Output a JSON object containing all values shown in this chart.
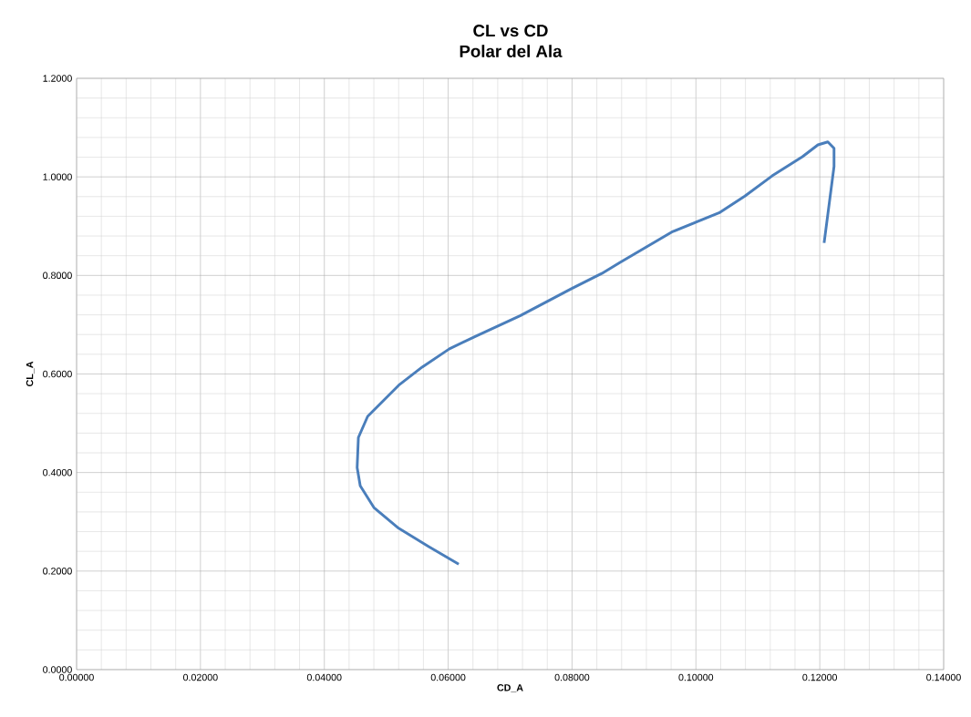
{
  "chart_data": {
    "type": "line",
    "title": "CL vs CD",
    "subtitle": "Polar del Ala",
    "xlabel": "CD_A",
    "ylabel": "CL_A",
    "xlim": [
      0,
      0.14
    ],
    "ylim": [
      0,
      1.2
    ],
    "xticks": [
      {
        "value": 0,
        "label": "0.00000"
      },
      {
        "value": 0.02,
        "label": "0.02000"
      },
      {
        "value": 0.04,
        "label": "0.04000"
      },
      {
        "value": 0.06,
        "label": "0.06000"
      },
      {
        "value": 0.08,
        "label": "0.08000"
      },
      {
        "value": 0.1,
        "label": "0.10000"
      },
      {
        "value": 0.12,
        "label": "0.12000"
      },
      {
        "value": 0.14,
        "label": "0.14000"
      }
    ],
    "yticks": [
      {
        "value": 0,
        "label": "0.0000"
      },
      {
        "value": 0.2,
        "label": "0.2000"
      },
      {
        "value": 0.4,
        "label": "0.4000"
      },
      {
        "value": 0.6,
        "label": "0.6000"
      },
      {
        "value": 0.8,
        "label": "0.8000"
      },
      {
        "value": 1.0,
        "label": "1.0000"
      },
      {
        "value": 1.2,
        "label": "1.2000"
      }
    ],
    "grid": true,
    "marker": "none",
    "line_style": "solid",
    "series": [
      {
        "color": "#4a7ebb",
        "x": [
          0.0617,
          0.0568,
          0.052,
          0.048,
          0.0458,
          0.0453,
          0.0455,
          0.047,
          0.052,
          0.0558,
          0.0602,
          0.0642,
          0.0716,
          0.0799,
          0.0848,
          0.0877,
          0.0961,
          0.1039,
          0.1079,
          0.1123,
          0.1172,
          0.1197,
          0.1213,
          0.1223,
          0.1223,
          0.1207
        ],
        "values": [
          0.214,
          0.25,
          0.287,
          0.329,
          0.373,
          0.41,
          0.471,
          0.514,
          0.577,
          0.614,
          0.651,
          0.675,
          0.718,
          0.773,
          0.804,
          0.826,
          0.888,
          0.928,
          0.961,
          1.002,
          1.041,
          1.065,
          1.071,
          1.058,
          1.021,
          0.866
        ]
      }
    ]
  }
}
